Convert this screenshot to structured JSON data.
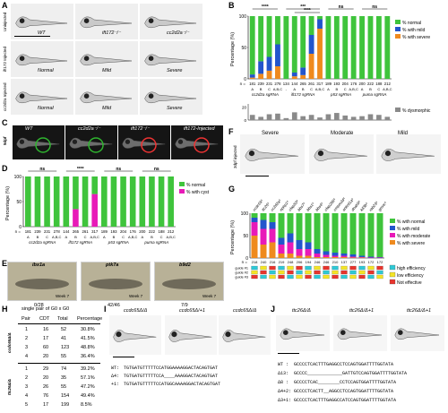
{
  "panels": {
    "A": "A",
    "B": "B",
    "C": "C",
    "D": "D",
    "E": "E",
    "F": "F",
    "G": "G",
    "H": "H",
    "I": "I",
    "J": "J"
  },
  "panel_a": {
    "row_labels": [
      "Uninjected",
      "ift172 Injected",
      "cc2d2a Injected"
    ],
    "labels": [
      "WT",
      "ift172⁻/⁻",
      "cc2d2a⁻/⁻",
      "Normal",
      "Mild",
      "Severe",
      "Normal",
      "Mild",
      "Severe"
    ]
  },
  "panel_c": {
    "row_label": "5dpf",
    "labels": [
      "WT",
      "cc2d2a⁻/⁻",
      "ift172⁻/⁻",
      "ift172-Injected"
    ]
  },
  "panel_e": {
    "genes": [
      "ibx1a",
      "ptk7a",
      "b9d2"
    ],
    "week": "Week 7",
    "counts": [
      "0/28",
      "42/46",
      "7/9"
    ]
  },
  "panel_f": {
    "labels": [
      "Severe",
      "Moderate",
      "Mild"
    ],
    "side_label": "3dpf injected"
  },
  "panel_h": {
    "title": "single pair of G0 x G0",
    "headers": [
      "Pair",
      "CDT",
      "Total",
      "Percentage"
    ],
    "group1": "ccdc65Δ/Δ",
    "group2": "ttc26Δ/Δ",
    "rows1": [
      [
        "1",
        "16",
        "52",
        "30.8%"
      ],
      [
        "2",
        "17",
        "41",
        "41.5%"
      ],
      [
        "3",
        "60",
        "123",
        "48.8%"
      ],
      [
        "4",
        "20",
        "55",
        "36.4%"
      ]
    ],
    "rows2": [
      [
        "1",
        "29",
        "74",
        "39.2%"
      ],
      [
        "2",
        "20",
        "35",
        "57.1%"
      ],
      [
        "3",
        "26",
        "55",
        "47.2%"
      ],
      [
        "4",
        "76",
        "154",
        "49.4%"
      ],
      [
        "5",
        "17",
        "199",
        "8.5%"
      ]
    ]
  },
  "panel_i": {
    "labels": [
      "ccdc65Δ/Δ",
      "ccdc65Δ/+1",
      "ccdc65Δ/Δ"
    ],
    "seq_labels": [
      "WT:",
      "Δ4:",
      "+1:"
    ],
    "seqs": [
      "TGTGATGTTTTTCCATGGAAAAGGACTACAGTGAT",
      "TGTGATGTTTTTCCA____AAAGGACTACAGTGAT",
      "TGTGATGTTTTTCCATGGCAAAAGGACTACAGTGAT"
    ]
  },
  "panel_j": {
    "labels": [
      "ttc26Δ/Δ",
      "ttc26Δ/Δ+1",
      "ttc26Δ/Δ+1"
    ],
    "seq_labels": [
      "WT :",
      "Δ13:",
      "Δ8 :",
      "Δ4+2:",
      "Δ3+1:"
    ],
    "seqs": [
      "GCCCCTCACTTTGAGGCCTCCAGTGGATTTTGGTATA",
      "GCCCC_____________GATTGTCCAGTGGATTTTGGTATA",
      "GCCCCTCAC________CCTCCAGTGGATTTTGGTATA",
      "GCCCCTCACTT__AGGCCTCCAGTGGATTTTGGTATA",
      "GCCCCTCACTTTGAGGCCATCCAGTGGATTTTGGTATA"
    ]
  },
  "chart_data": [
    {
      "panel": "B",
      "type": "bar",
      "ylabel": "Percentage (%)",
      "ylim": [
        0,
        100
      ],
      "yticks": [
        0,
        50,
        100
      ],
      "dysmorphic_yticks": [
        0,
        20
      ],
      "n_label": "n =",
      "n_values": [
        "181",
        "239",
        "231",
        "278",
        "134",
        "144",
        "265",
        "261",
        "317",
        "189",
        "193",
        "204",
        "176",
        "200",
        "222",
        "188",
        "212"
      ],
      "categories": [
        "A",
        "B",
        "C",
        "A,B,C",
        "-",
        "A",
        "B",
        "C",
        "A,B,C",
        "A",
        "B",
        "C",
        "A,B,C",
        "A",
        "B",
        "C",
        "A,B,C"
      ],
      "groups": [
        "cc2d2a sgRNA",
        "ift172 sgRNA",
        "p53 sgRNA",
        "puma sgRNA"
      ],
      "series": [
        {
          "name": "% normal",
          "color": "#3fc43c",
          "values": [
            93,
            72,
            65,
            45,
            100,
            90,
            82,
            30,
            5,
            100,
            100,
            100,
            100,
            100,
            100,
            100,
            100
          ]
        },
        {
          "name": "% with mild",
          "color": "#2255cc",
          "values": [
            5,
            20,
            22,
            35,
            0,
            6,
            12,
            30,
            15,
            0,
            0,
            0,
            0,
            0,
            0,
            0,
            0
          ]
        },
        {
          "name": "% with severe",
          "color": "#ef8a1e",
          "values": [
            2,
            8,
            13,
            20,
            0,
            4,
            6,
            40,
            80,
            0,
            0,
            0,
            0,
            0,
            0,
            0,
            0
          ]
        }
      ],
      "dysmorphic": {
        "name": "% dysmorphic",
        "values": [
          8,
          5,
          9,
          10,
          3,
          12,
          6,
          8,
          4,
          9,
          11,
          7,
          5,
          6,
          9,
          8,
          5
        ]
      },
      "significance": [
        "****",
        "***",
        "****",
        "ns",
        "ns"
      ]
    },
    {
      "panel": "D",
      "type": "bar",
      "ylabel": "Percentage (%)",
      "ylim": [
        0,
        100
      ],
      "yticks": [
        0,
        50,
        100
      ],
      "n_label": "n =",
      "n_values": [
        "181",
        "239",
        "231",
        "278",
        "144",
        "265",
        "261",
        "317",
        "189",
        "193",
        "204",
        "176",
        "200",
        "222",
        "188",
        "212"
      ],
      "categories": [
        "A",
        "B",
        "C",
        "A,B,C",
        "A",
        "B",
        "C",
        "A,B,C",
        "A",
        "B",
        "C",
        "A,B,C",
        "A",
        "B",
        "C",
        "A,B,C"
      ],
      "groups": [
        "cc2d2a sgRNA",
        "ift172 sgRNA",
        "p53 sgRNA",
        "puma sgRNA"
      ],
      "series": [
        {
          "name": "% normal",
          "color": "#3fc43c",
          "values": [
            100,
            100,
            100,
            100,
            100,
            65,
            100,
            35,
            100,
            100,
            100,
            100,
            100,
            100,
            100,
            100
          ]
        },
        {
          "name": "% with cyst",
          "color": "#e81ab8",
          "values": [
            0,
            0,
            0,
            0,
            0,
            35,
            0,
            65,
            0,
            0,
            0,
            0,
            0,
            0,
            0,
            0
          ]
        }
      ],
      "significance": [
        "ns",
        "****",
        "ns",
        "ns"
      ]
    },
    {
      "panel": "G",
      "type": "bar",
      "ylabel": "Percentage (%)",
      "ylim": [
        0,
        100
      ],
      "yticks": [
        0,
        50,
        100
      ],
      "n_label": "n =",
      "genes": [
        "ccdc65⁴",
        "ttc26⁴",
        "cc2d2a⁴",
        "nphp1⁴",
        "cfap53⁴",
        "bbs7⁴",
        "bbs1⁴",
        "bbs4⁴",
        "cfap298⁴",
        "cmpm2d⁴",
        "ankrd1a⁴",
        "dnah9⁴",
        "kif3b⁴",
        "rab23⁴",
        "gmnc⁴"
      ],
      "n_values": [
        "218",
        "240",
        "216",
        "219",
        "248",
        "206",
        "194",
        "246",
        "246",
        "210",
        "137",
        "277",
        "193",
        "172",
        "172"
      ],
      "series": [
        {
          "name": "% with normal",
          "color": "#3fc43c",
          "values": [
            10,
            15,
            20,
            55,
            45,
            60,
            65,
            80,
            85,
            88,
            90,
            92,
            95,
            97,
            98
          ]
        },
        {
          "name": "% with mild",
          "color": "#2255cc",
          "values": [
            10,
            20,
            15,
            15,
            20,
            20,
            15,
            10,
            8,
            7,
            5,
            5,
            3,
            2,
            1
          ]
        },
        {
          "name": "% with moderate",
          "color": "#e81ab8",
          "values": [
            30,
            35,
            30,
            20,
            25,
            15,
            15,
            8,
            5,
            3,
            3,
            2,
            1,
            1,
            1
          ]
        },
        {
          "name": "% with severe",
          "color": "#ef8a1e",
          "values": [
            50,
            30,
            35,
            10,
            10,
            5,
            5,
            2,
            2,
            2,
            2,
            1,
            1,
            0,
            0
          ]
        }
      ],
      "guide_rows": [
        "guide #1",
        "guide #2",
        "guide #3"
      ],
      "guide_legend": [
        {
          "label": "high efficiency",
          "color": "#2ec9d6"
        },
        {
          "label": "low efficiency",
          "color": "#f4e426"
        },
        {
          "label": "Not effective",
          "color": "#e8342c"
        }
      ]
    }
  ]
}
